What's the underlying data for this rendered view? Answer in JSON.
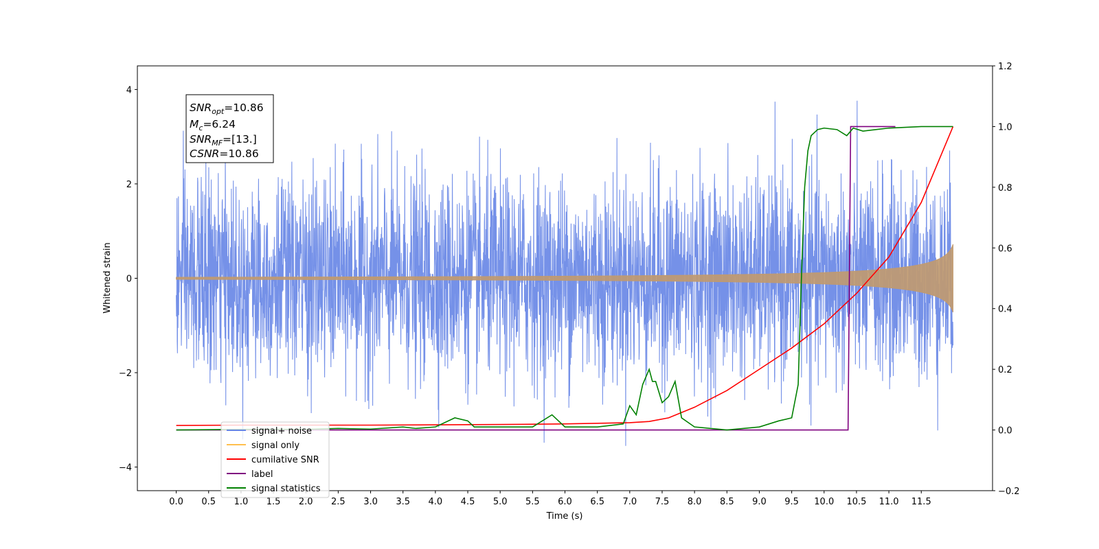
{
  "chart_data": {
    "type": "line",
    "title": "",
    "xlabel": "Time (s)",
    "ylabel": "Whitened strain",
    "y2label": "",
    "xlim": [
      -0.6,
      12.6
    ],
    "ylim": [
      -4.5,
      4.5
    ],
    "y2lim": [
      -0.2,
      1.2
    ],
    "x_ticks": [
      "0.0",
      "0.5",
      "1.0",
      "1.5",
      "2.0",
      "2.5",
      "3.0",
      "3.5",
      "4.0",
      "4.5",
      "5.0",
      "5.5",
      "6.0",
      "6.5",
      "7.0",
      "7.5",
      "8.0",
      "8.5",
      "9.0",
      "9.5",
      "10.0",
      "10.5",
      "11.0",
      "11.5"
    ],
    "y_ticks": [
      "4",
      "2",
      "0",
      "−2",
      "−4"
    ],
    "y2_ticks": [
      "1.2",
      "1.0",
      "0.8",
      "0.6",
      "0.4",
      "0.2",
      "0.0",
      "−0.2"
    ],
    "grid": false,
    "legend_position": "lower-left",
    "annotation": {
      "snr_opt": {
        "base": "SNR",
        "sub": "opt",
        "value": "=10.86"
      },
      "mc": {
        "base": "M",
        "sub": "c",
        "value": "=6.24"
      },
      "snr_mf": {
        "base": "SNR",
        "sub": "MF",
        "value": "=[13.]"
      },
      "csnr": {
        "base": "CSNR",
        "value": "=10.86"
      }
    },
    "series": [
      {
        "name": "signal+ noise",
        "color": "#6685e5",
        "axis": "left",
        "kind": "noise",
        "x_range": [
          0,
          11.99
        ],
        "std": 1.0,
        "peak_range": [
          -4.1,
          4.15
        ]
      },
      {
        "name": "signal only",
        "color": "#ffbf4d",
        "axis": "left",
        "kind": "chirp",
        "x_range": [
          0,
          11.99
        ],
        "amplitude_end": 0.72
      },
      {
        "name": "cumilative SNR",
        "color": "#ff0000",
        "axis": "right",
        "x": [
          0,
          1,
          2,
          3,
          4,
          5,
          6,
          7,
          7.3,
          7.6,
          8,
          8.5,
          9,
          9.5,
          10,
          10.5,
          11,
          11.5,
          11.99
        ],
        "y": [
          0.015,
          0.016,
          0.016,
          0.016,
          0.017,
          0.018,
          0.02,
          0.024,
          0.028,
          0.04,
          0.075,
          0.13,
          0.2,
          0.27,
          0.35,
          0.45,
          0.57,
          0.75,
          1.0
        ]
      },
      {
        "name": "label",
        "color": "#7f007f",
        "axis": "right",
        "x": [
          0,
          10.37,
          10.41,
          11.1
        ],
        "y": [
          0.0,
          0.0,
          1.0,
          1.0
        ]
      },
      {
        "name": "signal statistics",
        "color": "#008000",
        "axis": "right",
        "x": [
          0,
          1,
          2,
          2.5,
          3,
          3.5,
          3.7,
          4,
          4.3,
          4.5,
          4.6,
          5,
          5.5,
          5.8,
          5.9,
          6,
          6.5,
          6.9,
          7.0,
          7.1,
          7.2,
          7.3,
          7.35,
          7.4,
          7.5,
          7.6,
          7.7,
          7.8,
          8,
          8.5,
          9,
          9.3,
          9.5,
          9.6,
          9.65,
          9.7,
          9.75,
          9.8,
          9.9,
          10.0,
          10.2,
          10.35,
          10.45,
          10.6,
          10.8,
          11.0,
          11.5,
          11.99
        ],
        "y": [
          0.0,
          0.002,
          0.002,
          0.005,
          0.003,
          0.01,
          0.005,
          0.01,
          0.04,
          0.03,
          0.01,
          0.01,
          0.01,
          0.05,
          0.03,
          0.01,
          0.01,
          0.02,
          0.08,
          0.05,
          0.15,
          0.2,
          0.16,
          0.16,
          0.09,
          0.11,
          0.16,
          0.04,
          0.01,
          0.0,
          0.01,
          0.03,
          0.04,
          0.15,
          0.5,
          0.8,
          0.92,
          0.97,
          0.99,
          0.995,
          0.99,
          0.97,
          0.995,
          0.985,
          0.99,
          0.995,
          1.0,
          1.0
        ]
      }
    ]
  }
}
